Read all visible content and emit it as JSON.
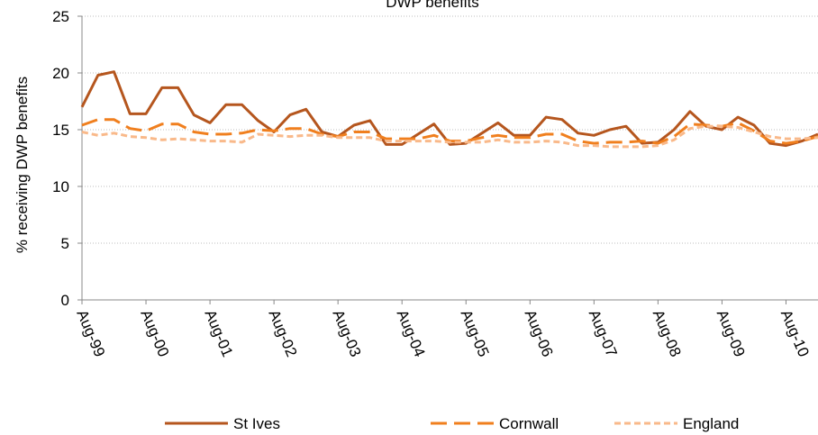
{
  "chart_data": {
    "type": "line",
    "title": "DWP benefits",
    "xlabel": "",
    "ylabel": "% receiving DWP benefits",
    "ylim": [
      0,
      25
    ],
    "yticks": [
      0,
      5,
      10,
      15,
      20,
      25
    ],
    "grid": "horizontal dotted",
    "legend_position": "bottom",
    "x": [
      "Aug-99",
      "Nov-99",
      "Feb-00",
      "May-00",
      "Aug-00",
      "Nov-00",
      "Feb-01",
      "May-01",
      "Aug-01",
      "Nov-01",
      "Feb-02",
      "May-02",
      "Aug-02",
      "Nov-02",
      "Feb-03",
      "May-03",
      "Aug-03",
      "Nov-03",
      "Feb-04",
      "May-04",
      "Aug-04",
      "Nov-04",
      "Feb-05",
      "May-05",
      "Aug-05",
      "Nov-05",
      "Feb-06",
      "May-06",
      "Aug-06",
      "Nov-06",
      "Feb-07",
      "May-07",
      "Aug-07",
      "Nov-07",
      "Feb-08",
      "May-08",
      "Aug-08",
      "Nov-08",
      "Feb-09",
      "May-09",
      "Aug-09",
      "Nov-09",
      "Feb-10",
      "May-10",
      "Aug-10",
      "Nov-10",
      "Feb-11"
    ],
    "x_tick_labels": [
      "Aug-99",
      "Aug-00",
      "Aug-01",
      "Aug-02",
      "Aug-03",
      "Aug-04",
      "Aug-05",
      "Aug-06",
      "Aug-07",
      "Aug-08",
      "Aug-09",
      "Aug-10"
    ],
    "series": [
      {
        "name": "St Ives",
        "color": "#b5561e",
        "style": "solid",
        "values": [
          17.0,
          19.8,
          20.1,
          16.4,
          16.4,
          18.7,
          18.7,
          16.3,
          15.6,
          17.2,
          17.2,
          15.8,
          14.8,
          16.3,
          16.8,
          14.8,
          14.4,
          15.4,
          15.8,
          13.7,
          13.7,
          14.6,
          15.5,
          13.7,
          13.8,
          14.7,
          15.6,
          14.5,
          14.5,
          16.1,
          15.9,
          14.7,
          14.5,
          15.0,
          15.3,
          13.8,
          13.9,
          15.0,
          16.6,
          15.3,
          15.0,
          16.1,
          15.4,
          13.8,
          13.6,
          14.0,
          14.6
        ]
      },
      {
        "name": "Cornwall",
        "color": "#f07f1e",
        "style": "dashed",
        "values": [
          15.4,
          15.9,
          15.9,
          15.1,
          14.9,
          15.5,
          15.5,
          14.8,
          14.6,
          14.6,
          14.7,
          15.0,
          14.9,
          15.1,
          15.1,
          14.6,
          14.4,
          14.8,
          14.8,
          14.2,
          14.2,
          14.2,
          14.5,
          14.0,
          14.0,
          14.3,
          14.5,
          14.3,
          14.3,
          14.6,
          14.6,
          14.0,
          13.8,
          13.9,
          13.9,
          14.0,
          13.8,
          14.4,
          15.5,
          15.4,
          15.3,
          15.6,
          14.9,
          14.0,
          13.8,
          14.0,
          14.4
        ]
      },
      {
        "name": "England",
        "color": "#f9b98a",
        "style": "dashed",
        "values": [
          14.8,
          14.5,
          14.7,
          14.4,
          14.3,
          14.1,
          14.2,
          14.1,
          14.0,
          14.0,
          13.9,
          14.6,
          14.5,
          14.4,
          14.5,
          14.5,
          14.3,
          14.3,
          14.3,
          14.0,
          14.0,
          14.0,
          14.0,
          13.9,
          13.9,
          13.9,
          14.1,
          13.9,
          13.9,
          14.0,
          13.9,
          13.6,
          13.6,
          13.5,
          13.5,
          13.5,
          13.6,
          14.1,
          15.1,
          15.3,
          15.3,
          15.2,
          14.8,
          14.4,
          14.2,
          14.2,
          14.3
        ]
      }
    ]
  }
}
